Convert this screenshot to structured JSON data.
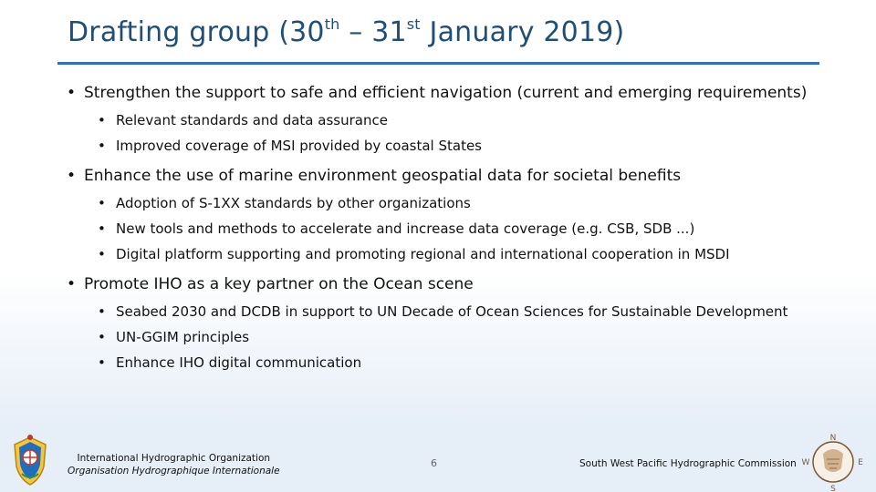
{
  "title": {
    "part1": "Drafting group (30",
    "sup1": "th",
    "part2": " – 31",
    "sup2": "st",
    "part3": " January 2019)"
  },
  "bullets": [
    {
      "text": "Strengthen the support to safe and efficient navigation (current and emerging requirements)",
      "sub": [
        "Relevant standards and data assurance",
        "Improved coverage of MSI provided by coastal States"
      ]
    },
    {
      "text": "Enhance the use of marine environment geospatial data for societal benefits",
      "sub": [
        "Adoption of S-1XX standards by other organizations",
        "New tools and methods to accelerate and increase data coverage (e.g. CSB, SDB ...)",
        "Digital platform supporting and promoting regional and international cooperation in MSDI"
      ]
    },
    {
      "text": "Promote IHO as a key partner on the Ocean scene",
      "sub": [
        "Seabed 2030 and DCDB in support to UN Decade of Ocean Sciences for Sustainable Development",
        "UN-GGIM principles",
        "Enhance IHO digital communication"
      ]
    }
  ],
  "footer": {
    "org_en": "International Hydrographic Organization",
    "org_fr": "Organisation Hydrographique Internationale",
    "page_number": "6",
    "commission": "South West Pacific Hydrographic Commission",
    "compass": {
      "n": "N",
      "s": "S",
      "e": "E",
      "w": "W"
    }
  },
  "colors": {
    "title": "#1f4e79",
    "rule": "#2f6fbf",
    "footer_bg": "#e6eef8"
  },
  "icons": [
    "iho-emblem-logo",
    "swphc-compass-logo"
  ]
}
